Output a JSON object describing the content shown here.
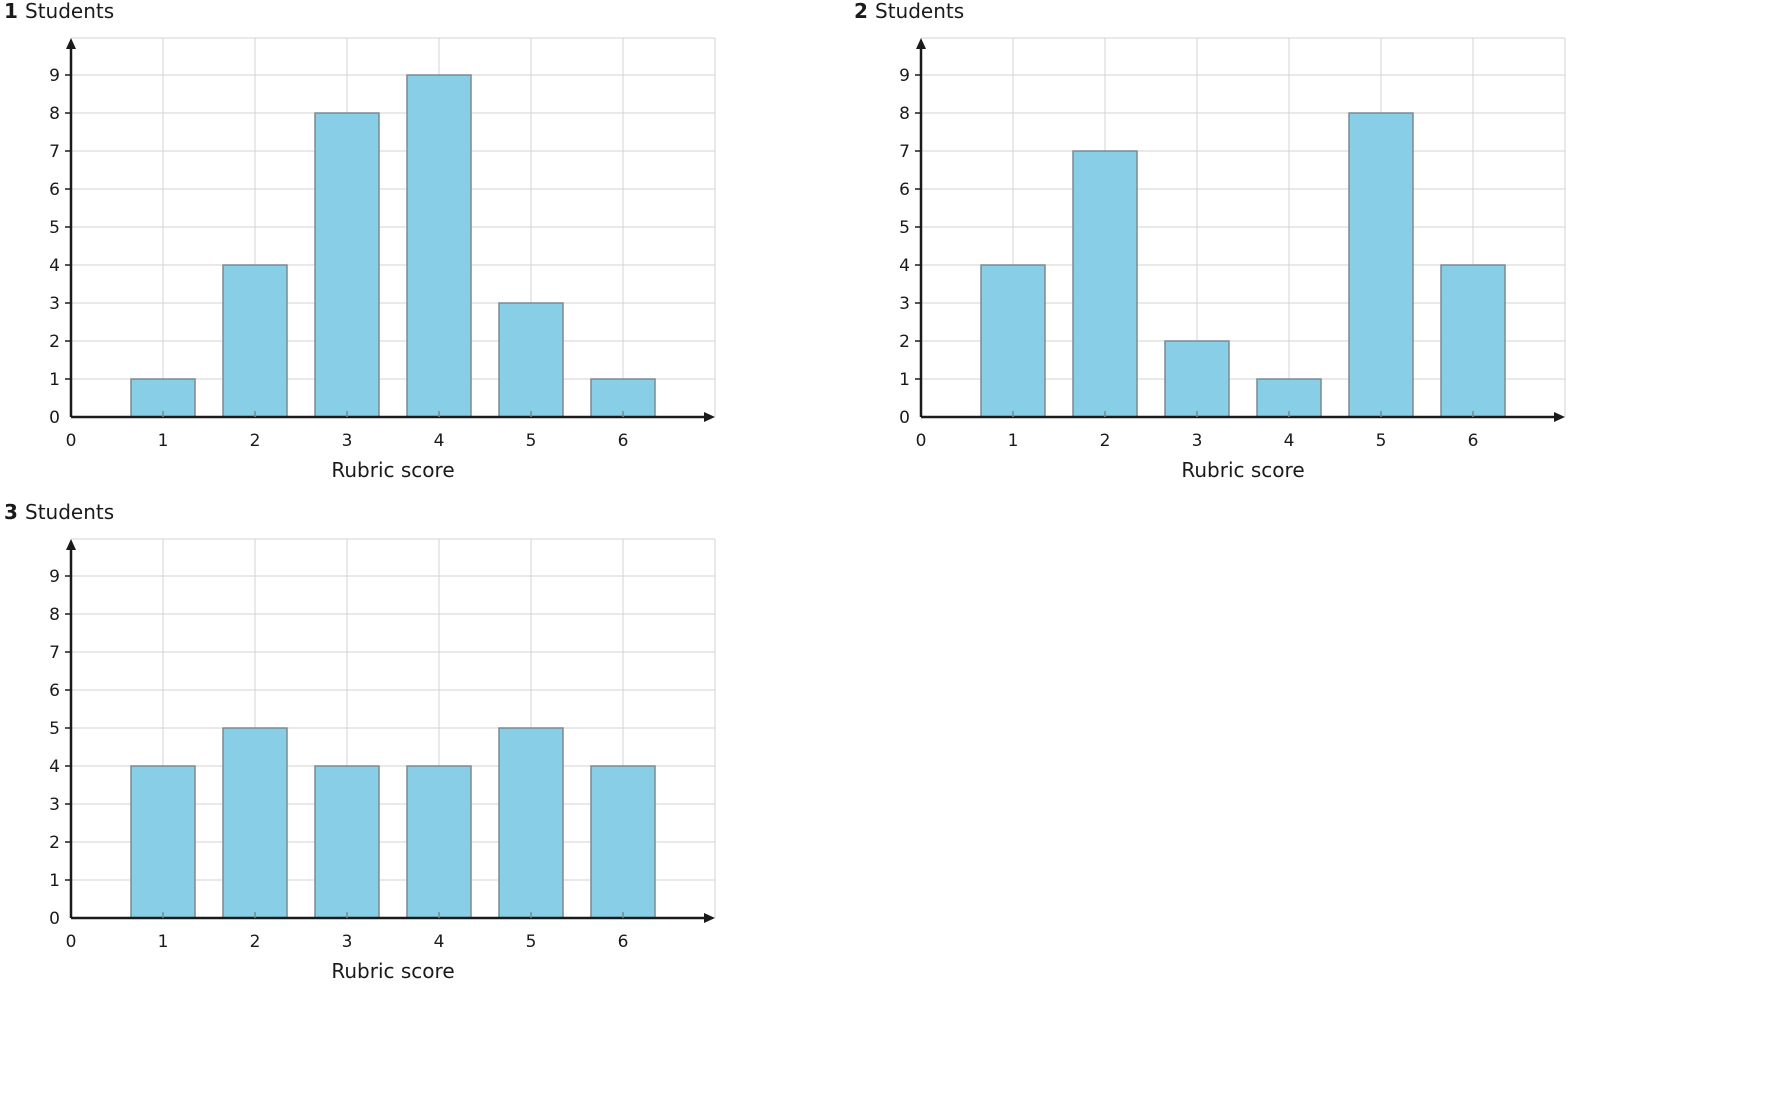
{
  "chart_data": [
    {
      "type": "bar",
      "panel_number": "1",
      "ylabel": "Students",
      "xlabel": "Rubric score",
      "categories": [
        1,
        2,
        3,
        4,
        5,
        6
      ],
      "values": [
        1,
        4,
        8,
        9,
        3,
        1
      ],
      "xlim": [
        0,
        7
      ],
      "ylim": [
        0,
        10
      ],
      "x_ticks": [
        "0",
        "1",
        "2",
        "3",
        "4",
        "5",
        "6"
      ],
      "y_ticks": [
        "0",
        "1",
        "2",
        "3",
        "4",
        "5",
        "6",
        "7",
        "8",
        "9"
      ],
      "grid": true
    },
    {
      "type": "bar",
      "panel_number": "2",
      "ylabel": "Students",
      "xlabel": "Rubric score",
      "categories": [
        1,
        2,
        3,
        4,
        5,
        6
      ],
      "values": [
        4,
        7,
        2,
        1,
        8,
        4
      ],
      "xlim": [
        0,
        7
      ],
      "ylim": [
        0,
        10
      ],
      "x_ticks": [
        "0",
        "1",
        "2",
        "3",
        "4",
        "5",
        "6"
      ],
      "y_ticks": [
        "0",
        "1",
        "2",
        "3",
        "4",
        "5",
        "6",
        "7",
        "8",
        "9"
      ],
      "grid": true
    },
    {
      "type": "bar",
      "panel_number": "3",
      "ylabel": "Students",
      "xlabel": "Rubric score",
      "categories": [
        1,
        2,
        3,
        4,
        5,
        6
      ],
      "values": [
        4,
        5,
        4,
        4,
        5,
        4
      ],
      "xlim": [
        0,
        7
      ],
      "ylim": [
        0,
        10
      ],
      "x_ticks": [
        "0",
        "1",
        "2",
        "3",
        "4",
        "5",
        "6"
      ],
      "y_ticks": [
        "0",
        "1",
        "2",
        "3",
        "4",
        "5",
        "6",
        "7",
        "8",
        "9"
      ],
      "grid": true
    }
  ],
  "colors": {
    "bar_fill": "#87CEE6",
    "bar_stroke": "#7a8a90",
    "grid": "#d3d3d3",
    "axis": "#1a1a1a",
    "text": "#1a1a1a"
  }
}
